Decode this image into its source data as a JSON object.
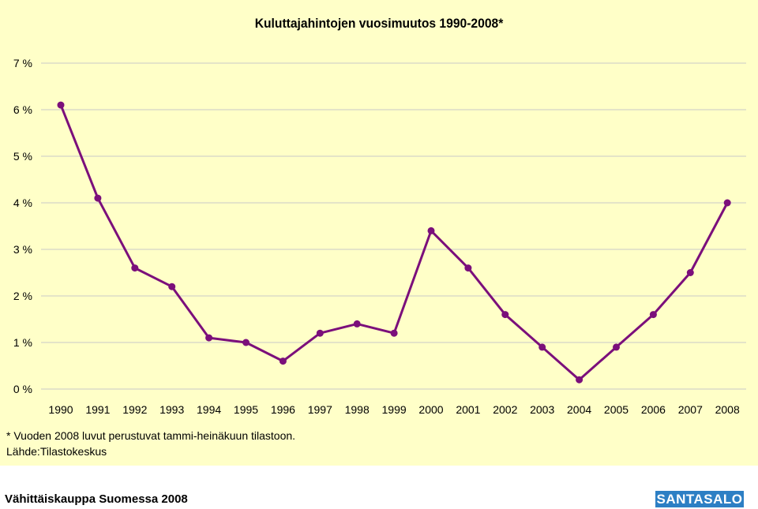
{
  "chart_data": {
    "type": "line",
    "title": "Kuluttajahintojen vuosimuutos 1990-2008*",
    "x": [
      "1990",
      "1991",
      "1992",
      "1993",
      "1994",
      "1995",
      "1996",
      "1997",
      "1998",
      "1999",
      "2000",
      "2001",
      "2002",
      "2003",
      "2004",
      "2005",
      "2006",
      "2007",
      "2008"
    ],
    "series": [
      {
        "values": [
          6.1,
          4.1,
          2.6,
          2.2,
          1.1,
          1.0,
          0.6,
          1.2,
          1.4,
          1.2,
          3.4,
          2.6,
          1.6,
          0.9,
          0.2,
          0.9,
          1.6,
          2.5,
          4.0
        ]
      }
    ],
    "yticks": [
      "0 %",
      "1 %",
      "2 %",
      "3 %",
      "4 %",
      "5 %",
      "6 %",
      "7 %"
    ],
    "ylim": [
      0,
      7
    ],
    "grid": true,
    "line_color": "#7b0f7b",
    "background_color": "#ffffc8"
  },
  "footnotes": {
    "note": "* Vuoden 2008 luvut perustuvat tammi-heinäkuun tilastoon.",
    "source": "Lähde:Tilastokeskus"
  },
  "footer": {
    "publication": "Vähittäiskauppa Suomessa 2008",
    "logo_text": "SANTASALO"
  }
}
